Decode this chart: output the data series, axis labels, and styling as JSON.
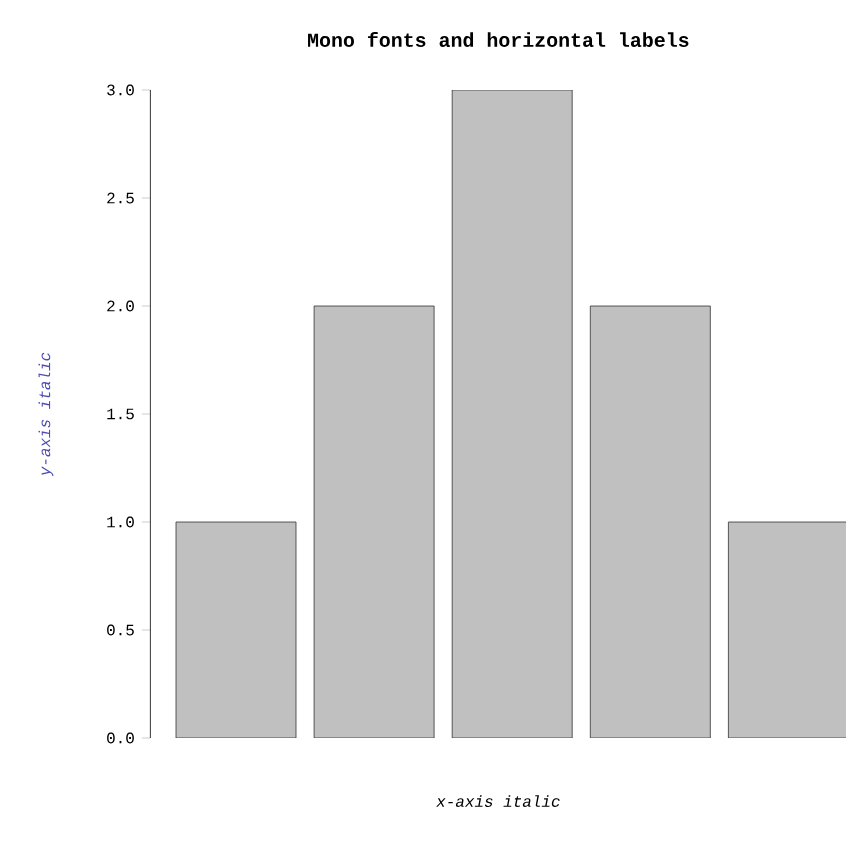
{
  "chart_data": {
    "type": "bar",
    "title": "Mono fonts and horizontal labels",
    "xlabel": "x-axis italic",
    "ylabel": "y-axis italic",
    "categories": [
      null,
      null,
      null,
      null,
      null
    ],
    "values": [
      1,
      2,
      3,
      2,
      1
    ],
    "color": "#c0c0c0",
    "ylim": [
      0,
      3
    ],
    "yticks": [
      {
        "value": 0,
        "label": "0.0"
      },
      {
        "value": 0.5,
        "label": "0.5"
      },
      {
        "value": 1,
        "label": "1.0"
      },
      {
        "value": 1.5,
        "label": "1.5"
      },
      {
        "value": 2,
        "label": "2.0"
      },
      {
        "value": 2.5,
        "label": "2.5"
      },
      {
        "value": 3,
        "label": "3.0"
      }
    ],
    "grid": false
  }
}
